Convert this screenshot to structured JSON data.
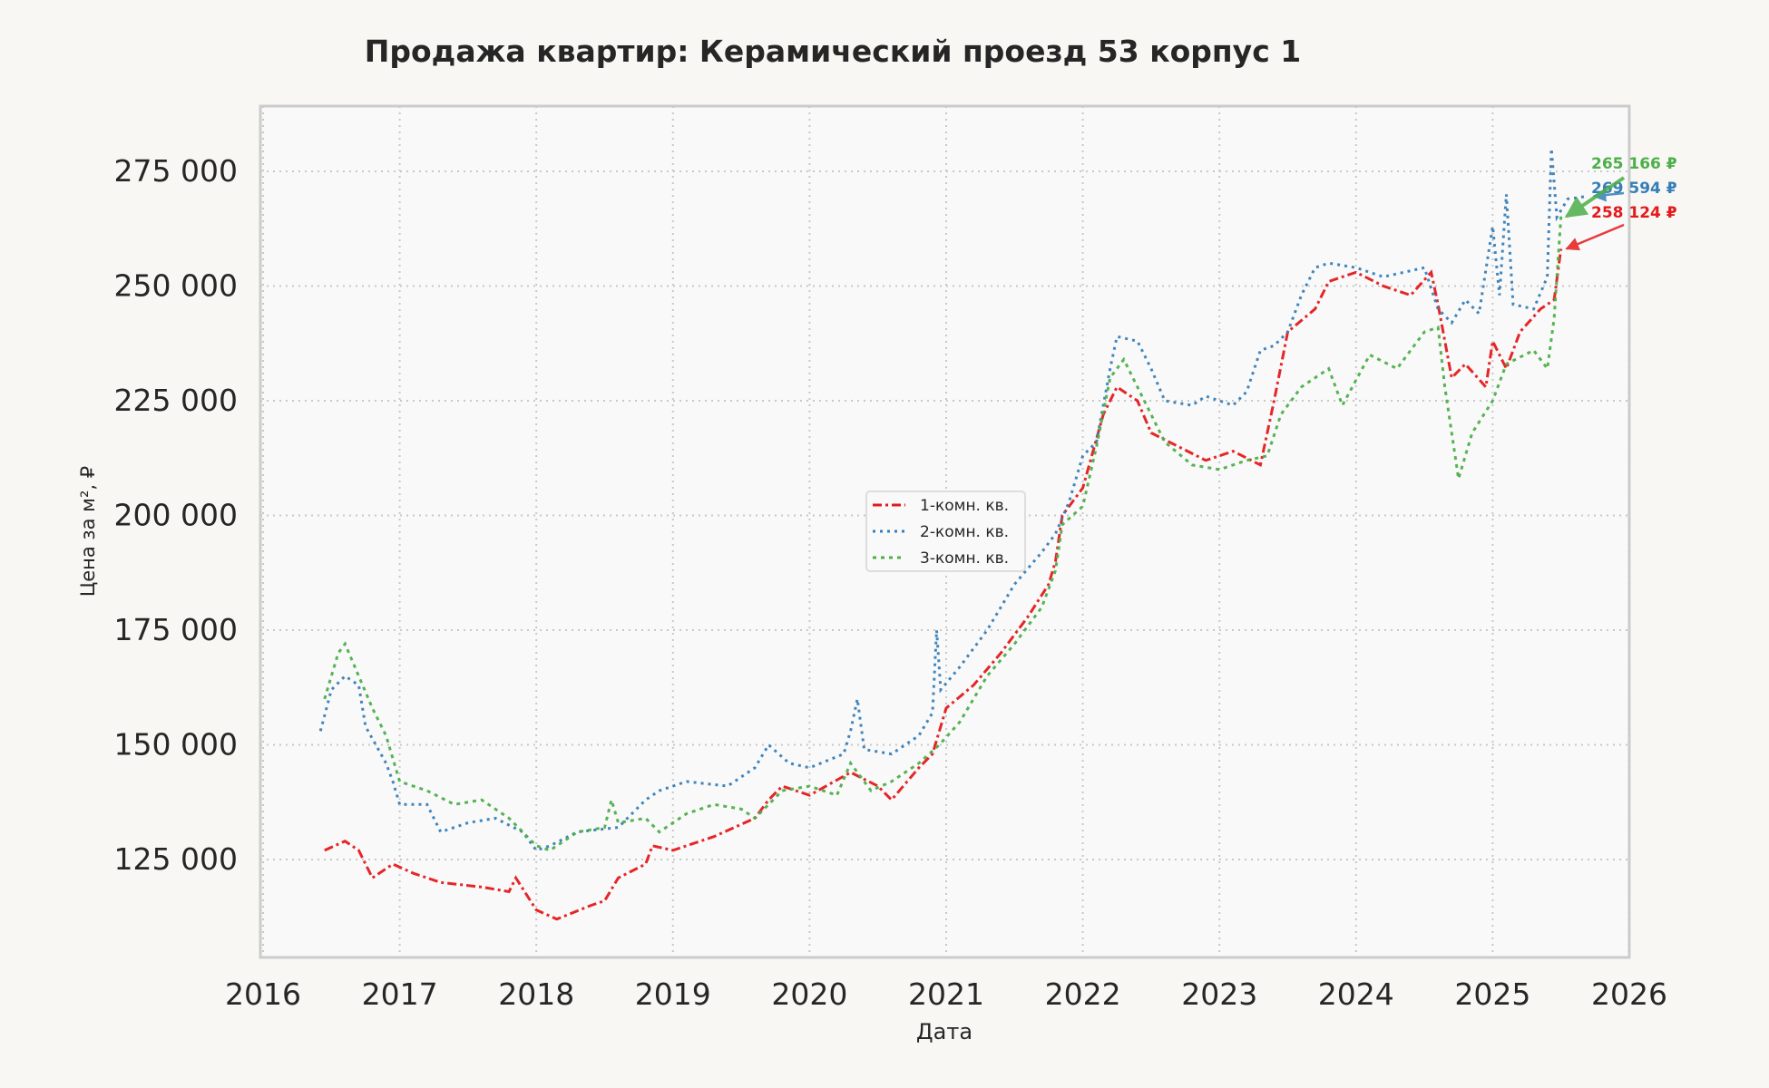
{
  "chart_data": {
    "type": "line",
    "title": "Продажа квартир: Керамический проезд 53 корпус 1",
    "xlabel": "Дата",
    "ylabel": "Цена за м², ₽",
    "xlim": [
      2016,
      2026
    ],
    "ylim": [
      103700,
      289200
    ],
    "x_ticks": [
      "2016",
      "2017",
      "2018",
      "2019",
      "2020",
      "2021",
      "2022",
      "2023",
      "2024",
      "2025",
      "2026"
    ],
    "y_ticks": [
      125000,
      150000,
      175000,
      200000,
      225000,
      250000,
      275000
    ],
    "y_tick_labels": [
      "125 000",
      "150 000",
      "175 000",
      "200 000",
      "225 000",
      "250 000",
      "275 000"
    ],
    "grid": true,
    "legend_position": "center",
    "series": [
      {
        "name": "1-комн. кв.",
        "color": "#e41a1c",
        "last_label": "258 124 ₽",
        "x": [
          2016.45,
          2016.6,
          2016.7,
          2016.8,
          2016.95,
          2017.1,
          2017.3,
          2017.6,
          2017.8,
          2017.85,
          2018.0,
          2018.15,
          2018.4,
          2018.5,
          2018.6,
          2018.8,
          2018.85,
          2019.0,
          2019.3,
          2019.6,
          2019.7,
          2019.8,
          2020.0,
          2020.3,
          2020.5,
          2020.6,
          2020.8,
          2020.9,
          2021.0,
          2021.2,
          2021.4,
          2021.6,
          2021.75,
          2021.8,
          2021.85,
          2022.0,
          2022.15,
          2022.25,
          2022.4,
          2022.5,
          2022.7,
          2022.9,
          2023.1,
          2023.3,
          2023.4,
          2023.5,
          2023.7,
          2023.8,
          2024.0,
          2024.2,
          2024.4,
          2024.55,
          2024.6,
          2024.7,
          2024.8,
          2024.95,
          2025.0,
          2025.1,
          2025.2,
          2025.35,
          2025.45,
          2025.5
        ],
        "y": [
          127000,
          129000,
          127000,
          121000,
          124000,
          122000,
          120000,
          119000,
          118000,
          121000,
          114000,
          112000,
          115000,
          116000,
          121000,
          124000,
          128000,
          127000,
          130000,
          134000,
          138000,
          141000,
          139000,
          144000,
          141000,
          138000,
          145000,
          148000,
          158000,
          163000,
          170000,
          178000,
          185000,
          190000,
          200000,
          206000,
          222000,
          228000,
          225000,
          218000,
          215000,
          212000,
          214000,
          211000,
          225000,
          240000,
          245000,
          251000,
          253000,
          250000,
          248000,
          253000,
          246000,
          230000,
          233000,
          228000,
          238000,
          232000,
          240000,
          245000,
          247000,
          258124
        ]
      },
      {
        "name": "2-комн. кв.",
        "color": "#377eb8",
        "last_label": "269 594 ₽",
        "x": [
          2016.42,
          2016.5,
          2016.6,
          2016.7,
          2016.75,
          2016.9,
          2016.95,
          2017.0,
          2017.2,
          2017.3,
          2017.5,
          2017.7,
          2017.9,
          2018.0,
          2018.1,
          2018.3,
          2018.6,
          2018.8,
          2018.9,
          2019.1,
          2019.4,
          2019.6,
          2019.7,
          2019.85,
          2020.0,
          2020.25,
          2020.3,
          2020.35,
          2020.4,
          2020.6,
          2020.8,
          2020.9,
          2020.93,
          2020.96,
          2021.1,
          2021.3,
          2021.5,
          2021.7,
          2021.8,
          2021.9,
          2022.0,
          2022.1,
          2022.2,
          2022.25,
          2022.4,
          2022.5,
          2022.6,
          2022.8,
          2022.9,
          2023.1,
          2023.2,
          2023.3,
          2023.4,
          2023.5,
          2023.6,
          2023.7,
          2023.8,
          2024.0,
          2024.2,
          2024.5,
          2024.6,
          2024.7,
          2024.8,
          2024.9,
          2025.0,
          2025.05,
          2025.1,
          2025.15,
          2025.3,
          2025.4,
          2025.43,
          2025.47,
          2025.55,
          2025.7
        ],
        "y": [
          153000,
          162000,
          165000,
          163000,
          154000,
          146000,
          142000,
          137000,
          137000,
          131000,
          133000,
          134000,
          131000,
          127000,
          128000,
          131000,
          132000,
          138000,
          140000,
          142000,
          141000,
          145000,
          150000,
          146000,
          145000,
          148000,
          153000,
          160000,
          149000,
          148000,
          152000,
          157000,
          175000,
          162000,
          167000,
          175000,
          185000,
          192000,
          196000,
          203000,
          213000,
          216000,
          232000,
          239000,
          238000,
          232000,
          225000,
          224000,
          226000,
          224000,
          227000,
          236000,
          237000,
          240000,
          248000,
          254000,
          255000,
          254000,
          252000,
          254000,
          245000,
          242000,
          247000,
          244000,
          263000,
          248000,
          270000,
          246000,
          245000,
          252000,
          280000,
          265000,
          269000,
          269594
        ]
      },
      {
        "name": "3-комн. кв.",
        "color": "#4daf4a",
        "last_label": "265 166 ₽",
        "x": [
          2016.45,
          2016.55,
          2016.6,
          2016.7,
          2016.8,
          2016.9,
          2017.0,
          2017.2,
          2017.4,
          2017.6,
          2017.8,
          2018.0,
          2018.1,
          2018.3,
          2018.5,
          2018.55,
          2018.6,
          2018.8,
          2018.9,
          2019.1,
          2019.3,
          2019.5,
          2019.6,
          2019.8,
          2020.0,
          2020.2,
          2020.3,
          2020.45,
          2020.6,
          2020.8,
          2020.95,
          2021.1,
          2021.3,
          2021.5,
          2021.7,
          2021.8,
          2021.85,
          2022.0,
          2022.1,
          2022.2,
          2022.3,
          2022.45,
          2022.6,
          2022.8,
          2023.0,
          2023.2,
          2023.35,
          2023.45,
          2023.6,
          2023.8,
          2023.9,
          2024.1,
          2024.3,
          2024.5,
          2024.6,
          2024.65,
          2024.75,
          2024.85,
          2025.0,
          2025.1,
          2025.3,
          2025.4,
          2025.45,
          2025.5
        ],
        "y": [
          160000,
          170000,
          172000,
          165000,
          158000,
          152000,
          142000,
          140000,
          137000,
          138000,
          134000,
          128000,
          127000,
          131000,
          132000,
          138000,
          133000,
          134000,
          131000,
          135000,
          137000,
          136000,
          134000,
          140000,
          141000,
          139000,
          146000,
          140000,
          142000,
          146000,
          150000,
          155000,
          165000,
          172000,
          180000,
          188000,
          198000,
          202000,
          215000,
          230000,
          234000,
          225000,
          216000,
          211000,
          210000,
          212000,
          213000,
          222000,
          228000,
          232000,
          224000,
          235000,
          232000,
          240000,
          241000,
          228000,
          208000,
          218000,
          225000,
          233000,
          236000,
          232000,
          243000,
          265166
        ]
      }
    ]
  }
}
